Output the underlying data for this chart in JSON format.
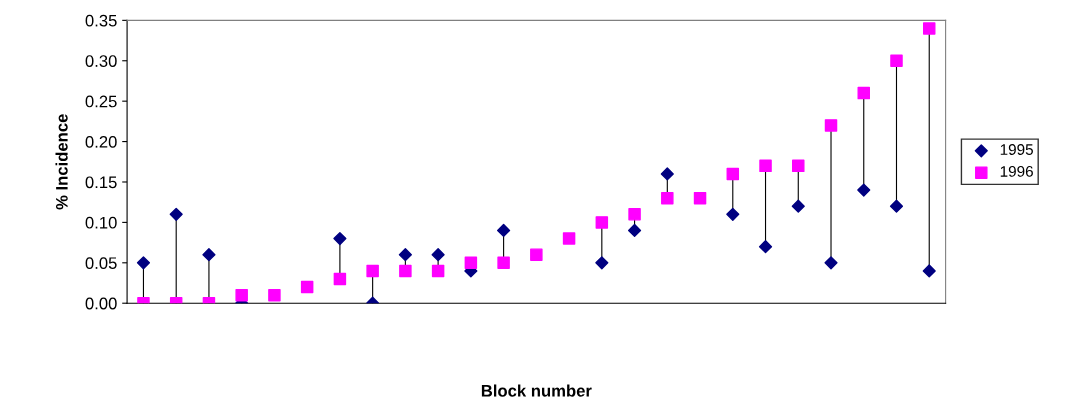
{
  "chart_data": {
    "type": "scatter",
    "xlabel": "Block number",
    "ylabel": "% Incidence",
    "categories": [
      null,
      null,
      null,
      null,
      null,
      null,
      null,
      null,
      null,
      null,
      null,
      null,
      null,
      null,
      null,
      null,
      null,
      null,
      null,
      null,
      null,
      null,
      null,
      null,
      null
    ],
    "series": [
      {
        "name": "1995",
        "color": "#000080",
        "marker": "diamond",
        "values": [
          0.05,
          0.11,
          0.06,
          0.0,
          null,
          null,
          0.08,
          0.0,
          0.06,
          0.06,
          0.04,
          0.09,
          null,
          null,
          0.05,
          0.09,
          0.16,
          null,
          0.11,
          0.07,
          0.12,
          0.05,
          0.14,
          0.12,
          0.04
        ]
      },
      {
        "name": "1996",
        "color": "#ff00ff",
        "marker": "square",
        "values": [
          0.0,
          0.0,
          0.0,
          0.01,
          0.01,
          0.02,
          0.03,
          0.04,
          0.04,
          0.04,
          0.05,
          0.05,
          0.06,
          0.08,
          0.1,
          0.11,
          0.13,
          0.13,
          0.16,
          0.17,
          0.17,
          0.22,
          0.26,
          0.3,
          0.34
        ]
      }
    ],
    "ylim": [
      0,
      0.35
    ],
    "yticks": [
      {
        "value": 0,
        "label": "0.00"
      },
      {
        "value": 0.05,
        "label": "0.05"
      },
      {
        "value": 0.1,
        "label": "0.10"
      },
      {
        "value": 0.15,
        "label": "0.15"
      },
      {
        "value": 0.2,
        "label": "0.20"
      },
      {
        "value": 0.25,
        "label": "0.25"
      },
      {
        "value": 0.3,
        "label": "0.30"
      },
      {
        "value": 0.35,
        "label": "0.35"
      }
    ],
    "legend": "right",
    "grid": false
  }
}
